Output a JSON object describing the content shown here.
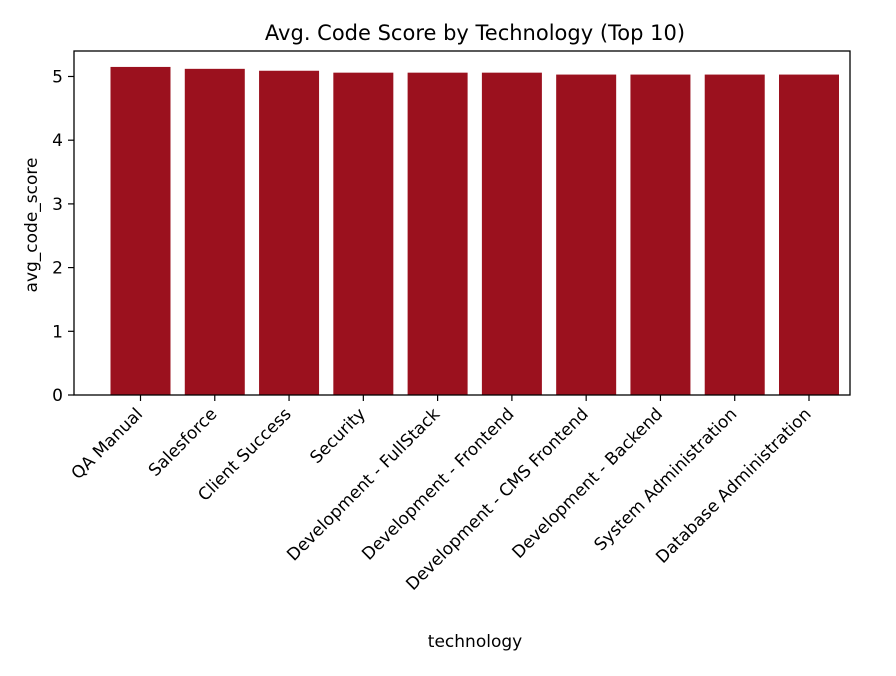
{
  "chart_data": {
    "type": "bar",
    "title": "Avg. Code Score by Technology (Top 10)",
    "xlabel": "technology",
    "ylabel": "avg_code_score",
    "categories": [
      "QA Manual",
      "Salesforce",
      "Client Success",
      "Security",
      "Development - FullStack",
      "Development - Frontend",
      "Development - CMS Frontend",
      "Development - Backend",
      "System Administration",
      "Database Administration"
    ],
    "values": [
      5.15,
      5.12,
      5.09,
      5.06,
      5.06,
      5.06,
      5.03,
      5.03,
      5.03,
      5.03
    ],
    "ylim": [
      0,
      5.4
    ],
    "yticks": [
      "0",
      "1",
      "2",
      "3",
      "4",
      "5"
    ],
    "grid": false,
    "bar_color": "#9b111e"
  }
}
